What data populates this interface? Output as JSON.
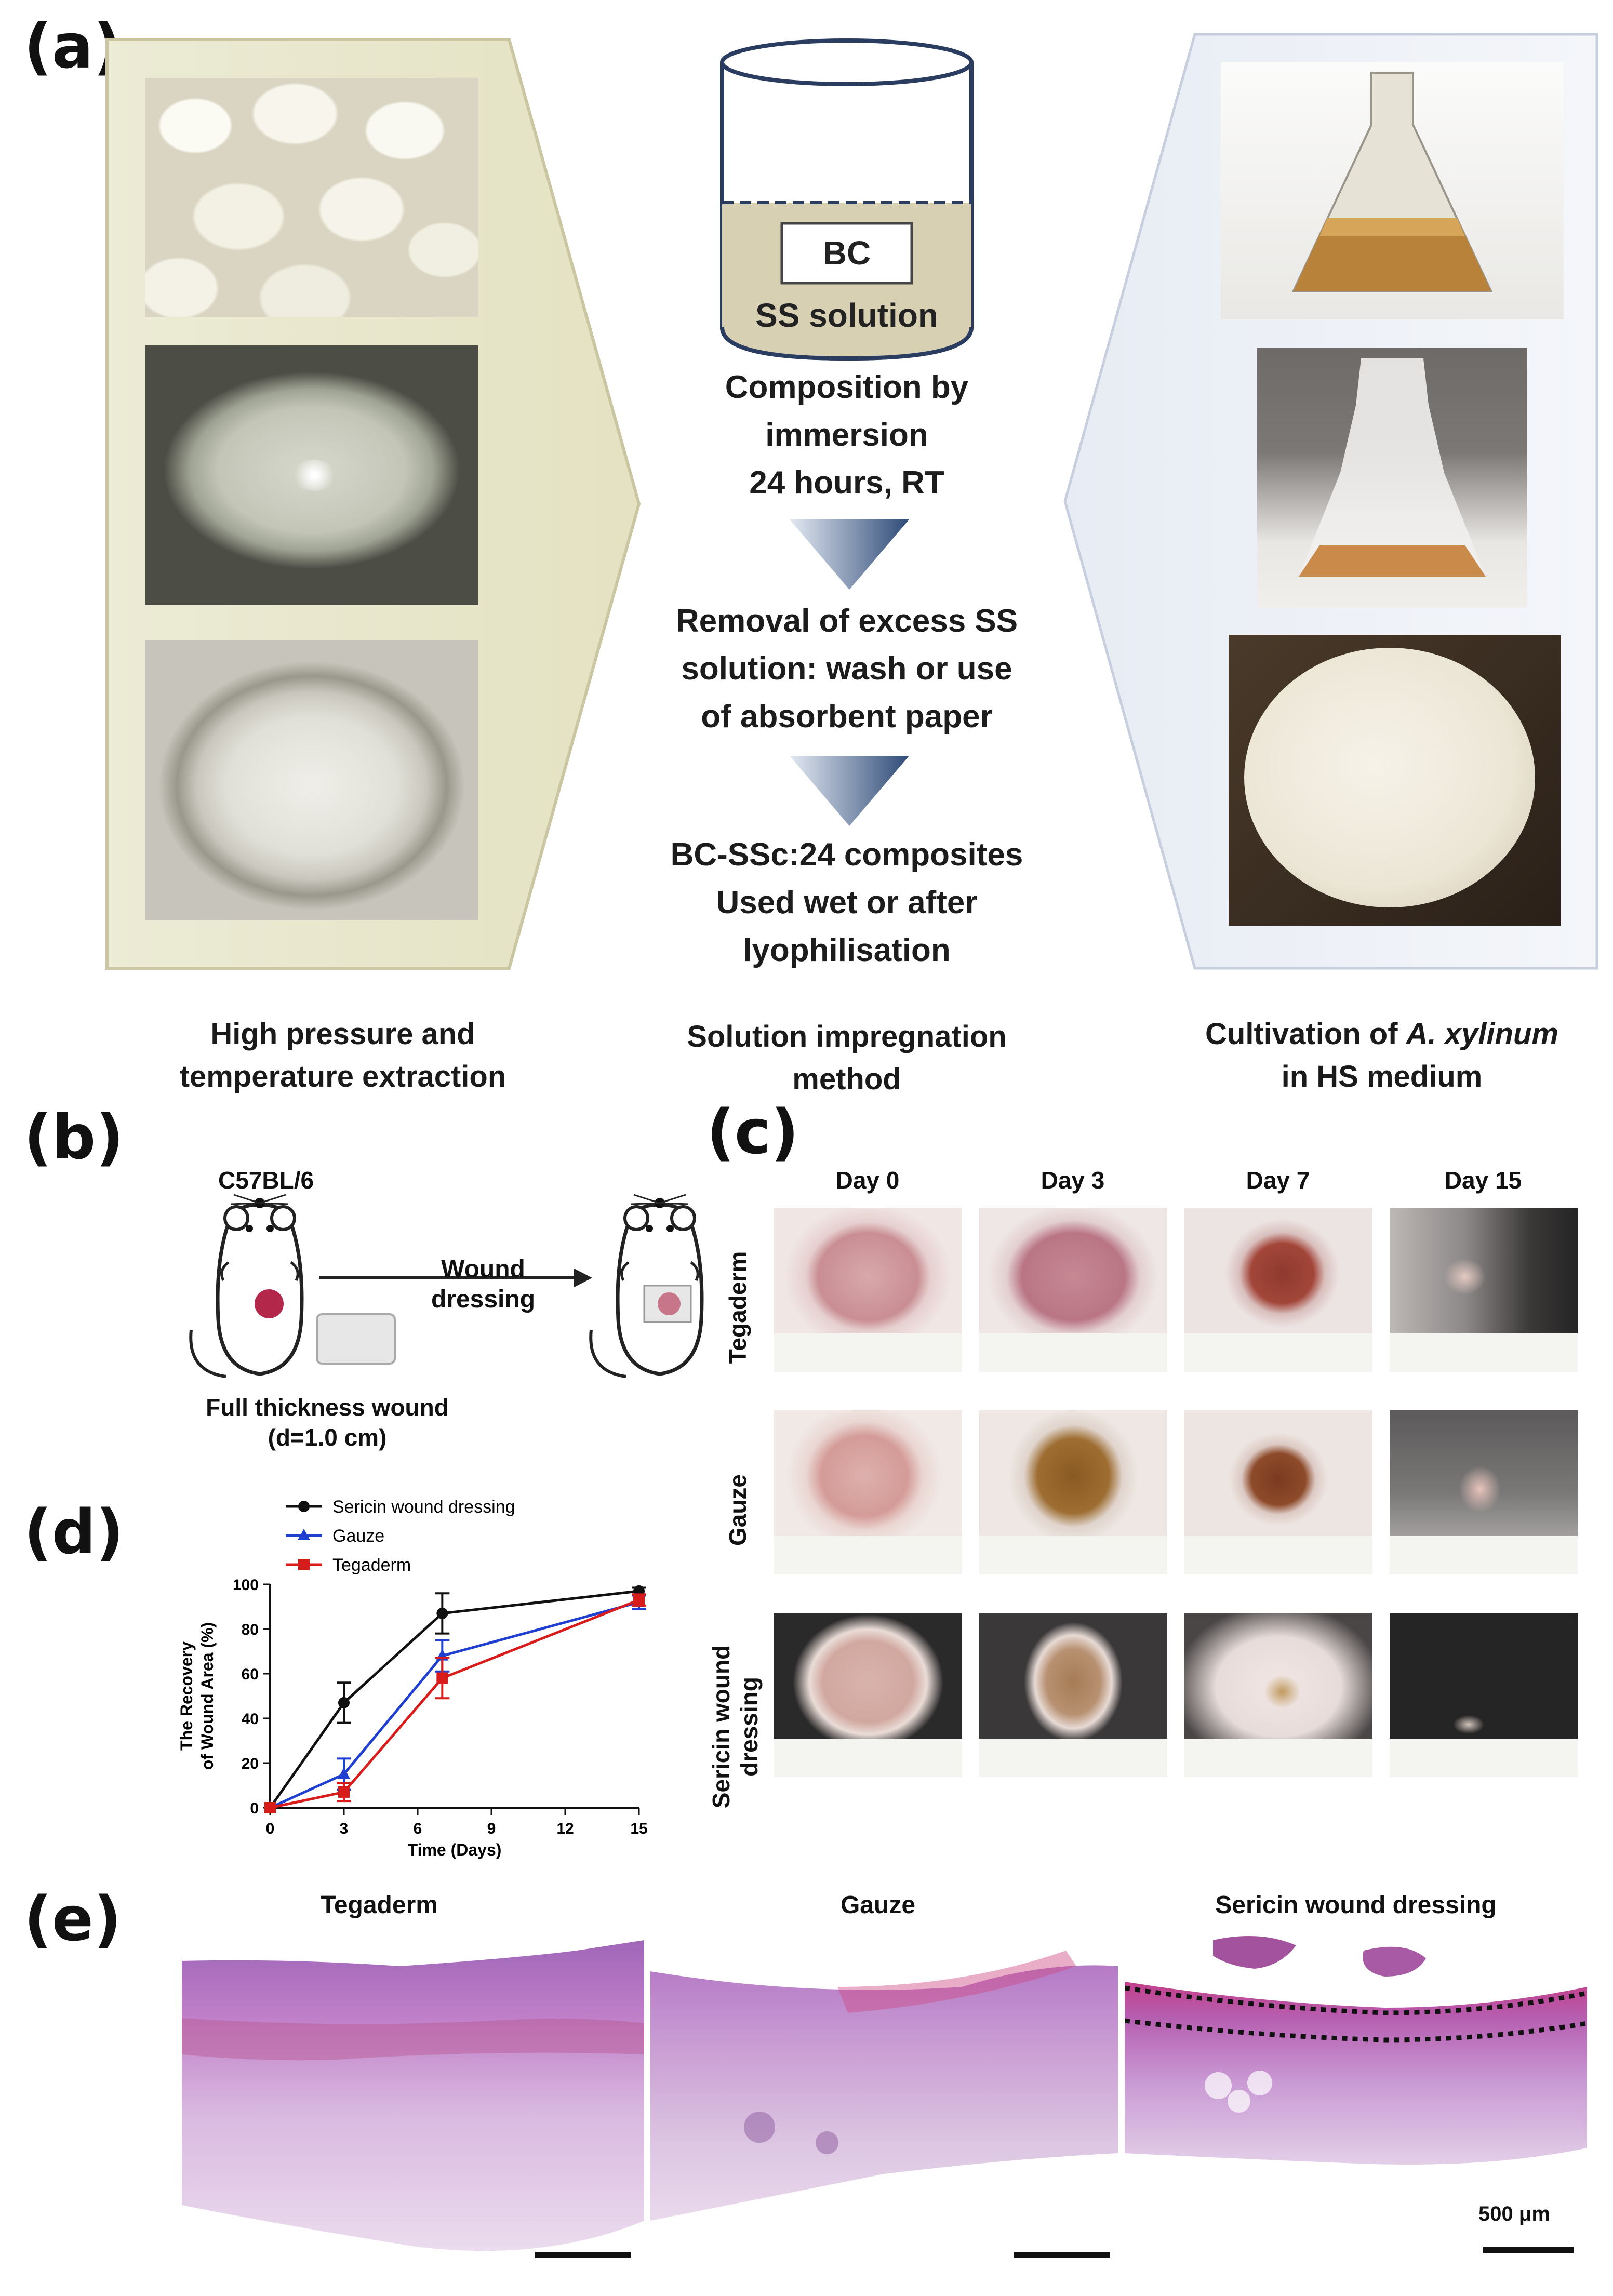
{
  "panel_a": {
    "label": "(a)",
    "beaker": {
      "inner_label": "BC",
      "solution_label": "SS solution"
    },
    "steps": [
      [
        "Composition by",
        "immersion",
        "24 hours, RT"
      ],
      [
        "Removal of excess SS",
        "solution: wash or use",
        "of absorbent paper"
      ],
      [
        "BC-SSc:24 composites",
        "Used wet or after",
        "lyophilisation"
      ]
    ],
    "captions": {
      "left": [
        "High pressure and",
        "temperature extraction"
      ],
      "middle": [
        "Solution impregnation",
        "method"
      ],
      "right_line1_prefix": "Cultivation of ",
      "right_line1_species": "A. xylinum",
      "right_line2": "in HS medium"
    }
  },
  "panel_b": {
    "label": "(b)",
    "mouse_strain": "C57BL/6",
    "arrow_label": [
      "Wound",
      "dressing"
    ],
    "wound_label": [
      "Full thickness wound",
      "(d=1.0 cm)"
    ]
  },
  "panel_c": {
    "label": "(c)",
    "columns": [
      "Day 0",
      "Day 3",
      "Day 7",
      "Day 15"
    ],
    "rows": [
      "Tegaderm",
      "Gauze",
      "Sericin wound dressing"
    ],
    "row_label_lines": [
      [
        "Tegaderm"
      ],
      [
        "Gauze"
      ],
      [
        "Sericin wound",
        "dressing"
      ]
    ]
  },
  "panel_d": {
    "label": "(d)",
    "chart_data": {
      "type": "line",
      "x": [
        0,
        3,
        7,
        15
      ],
      "xticks": [
        0,
        3,
        6,
        9,
        12,
        15
      ],
      "yticks": [
        0,
        20,
        40,
        60,
        80,
        100
      ],
      "xlabel": "Time (Days)",
      "ylabel_lines": [
        "The Recovery",
        "of Wound Area (%)"
      ],
      "xlim": [
        0,
        15
      ],
      "ylim": [
        0,
        100
      ],
      "legend_position": "top-left",
      "series": [
        {
          "name": "Sericin wound dressing",
          "color": "#111111",
          "marker": "circle",
          "values": [
            0,
            47,
            87,
            97
          ],
          "errors": [
            0,
            9,
            9,
            1.5
          ]
        },
        {
          "name": "Gauze",
          "color": "#1f3fd0",
          "marker": "triangle",
          "values": [
            0,
            15,
            68,
            92
          ],
          "errors": [
            0,
            7,
            7,
            3
          ]
        },
        {
          "name": "Tegaderm",
          "color": "#d81b1b",
          "marker": "square",
          "values": [
            0,
            7,
            58,
            93
          ],
          "errors": [
            0,
            4,
            9,
            2.5
          ]
        }
      ]
    }
  },
  "panel_e": {
    "label": "(e)",
    "titles": [
      "Tegaderm",
      "Gauze",
      "Sericin wound dressing"
    ],
    "scale_label": "500 μm"
  },
  "colors": {
    "side_panel_fill": "#ecebd5",
    "side_panel_border": "#c9c6a1",
    "right_panel_fill": "#f4f6fa",
    "beaker_outline": "#2a3d60",
    "beaker_fill": "#d8d0b2",
    "triangle_dark": "#2f4b78",
    "triangle_light": "#e3e9f2",
    "he_stain": "#b77cc4"
  }
}
